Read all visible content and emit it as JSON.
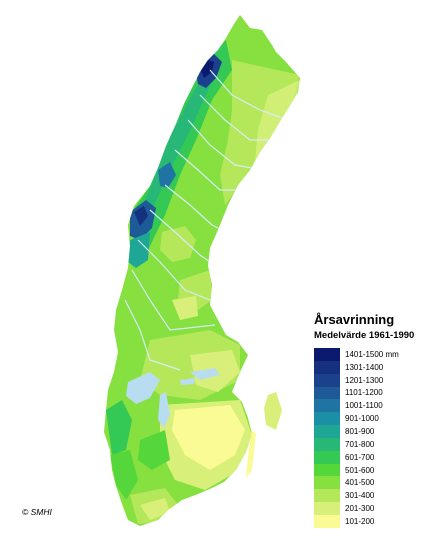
{
  "map": {
    "legend": {
      "title": "Årsavrinning",
      "subtitle": "Medelvärde 1961-1990",
      "items": [
        {
          "label": "1401-1500 mm",
          "color": "#0b1a6e"
        },
        {
          "label": "1301-1400",
          "color": "#15307e"
        },
        {
          "label": "1201-1300",
          "color": "#1c418c"
        },
        {
          "label": "1101-1200",
          "color": "#1f5a98"
        },
        {
          "label": "1001-1100",
          "color": "#1f74a4"
        },
        {
          "label": "901-1000",
          "color": "#1b8fa6"
        },
        {
          "label": "801-900",
          "color": "#1ea795"
        },
        {
          "label": "701-800",
          "color": "#27b877"
        },
        {
          "label": "601-700",
          "color": "#34c854"
        },
        {
          "label": "501-600",
          "color": "#55d63a"
        },
        {
          "label": "401-500",
          "color": "#86e03f"
        },
        {
          "label": "301-400",
          "color": "#b4e85a"
        },
        {
          "label": "201-300",
          "color": "#d8f07a"
        },
        {
          "label": "101-200",
          "color": "#fbfb96"
        }
      ]
    },
    "credit": "© SMHI",
    "colors": {
      "lakes": "#b8dcf0",
      "rivers": "#d5ecf6",
      "base_land": "#86e03f"
    }
  }
}
